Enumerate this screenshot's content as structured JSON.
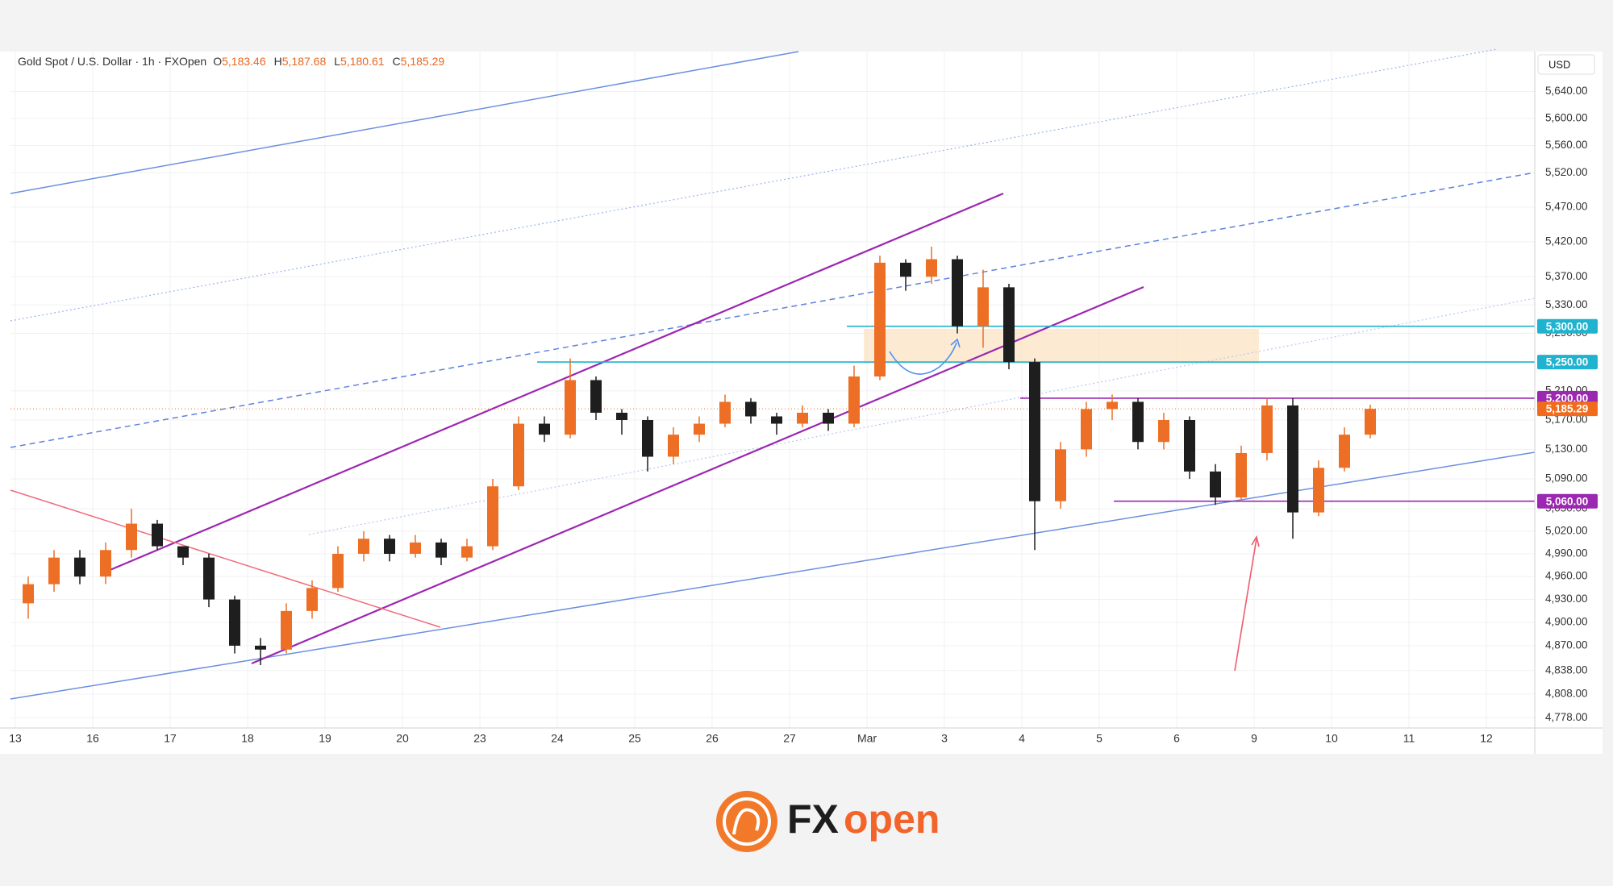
{
  "chart_data": {
    "type": "candlestick",
    "title": "Gold Spot / U.S. Dollar · 1h · FXOpen",
    "ohlc_header": [
      {
        "letter": "O",
        "value": "5,183.46"
      },
      {
        "letter": "H",
        "value": "5,187.68"
      },
      {
        "letter": "L",
        "value": "5,180.61"
      },
      {
        "letter": "C",
        "value": "5,185.29"
      }
    ],
    "currency": "USD",
    "categories": [
      "13",
      "16",
      "17",
      "18",
      "19",
      "20",
      "23",
      "24",
      "25",
      "26",
      "27",
      "Mar",
      "3",
      "4",
      "5",
      "6",
      "9",
      "10",
      "11",
      "12"
    ],
    "series": [
      {
        "up_color": "#ec6f25",
        "down_color": "#1e1e1e",
        "open": [
          4925,
          4950,
          4985,
          4960,
          4995,
          5030,
          5000,
          4985,
          4930,
          4870,
          4865,
          4915,
          4945,
          4990,
          5010,
          4990,
          5005,
          4985,
          5000,
          5080,
          5165,
          5150,
          5225,
          5180,
          5170,
          5120,
          5150,
          5165,
          5195,
          5175,
          5165,
          5180,
          5165,
          5230,
          5390,
          5370,
          5395,
          5300,
          5355,
          5250,
          5060,
          5130,
          5185,
          5195,
          5140,
          5170,
          5100,
          5065,
          5125,
          5190,
          5045,
          5105,
          5150
        ],
        "high": [
          4960,
          4995,
          4995,
          5005,
          5050,
          5035,
          5000,
          4990,
          4935,
          4880,
          4925,
          4955,
          5000,
          5020,
          5015,
          5015,
          5010,
          5010,
          5090,
          5175,
          5175,
          5255,
          5230,
          5185,
          5175,
          5160,
          5175,
          5205,
          5200,
          5180,
          5190,
          5185,
          5245,
          5400,
          5395,
          5413,
          5400,
          5380,
          5360,
          5255,
          5140,
          5195,
          5205,
          5200,
          5180,
          5175,
          5110,
          5135,
          5200,
          5200,
          5115,
          5160,
          5191
        ],
        "low": [
          4905,
          4940,
          4950,
          4950,
          4985,
          4995,
          4975,
          4920,
          4860,
          4845,
          4860,
          4905,
          4940,
          4980,
          4980,
          4985,
          4975,
          4980,
          4995,
          5075,
          5140,
          5145,
          5170,
          5150,
          5100,
          5110,
          5140,
          5160,
          5165,
          5150,
          5160,
          5155,
          5160,
          5225,
          5350,
          5360,
          5290,
          5270,
          5240,
          4995,
          5050,
          5120,
          5170,
          5130,
          5130,
          5090,
          5055,
          5060,
          5115,
          5010,
          5040,
          5100,
          5145
        ],
        "close": [
          4950,
          4985,
          4960,
          4995,
          5030,
          5000,
          4985,
          4930,
          4870,
          4865,
          4915,
          4945,
          4990,
          5010,
          4990,
          5005,
          4985,
          5000,
          5080,
          5165,
          5150,
          5225,
          5180,
          5170,
          5120,
          5150,
          5165,
          5195,
          5175,
          5165,
          5180,
          5165,
          5230,
          5390,
          5370,
          5395,
          5300,
          5355,
          5250,
          5060,
          5130,
          5185,
          5195,
          5140,
          5170,
          5100,
          5065,
          5125,
          5190,
          5045,
          5105,
          5150,
          5185.29
        ]
      }
    ],
    "log_scale": true,
    "grid": true,
    "ylim": [
      4765,
      5700
    ],
    "yticks": [
      {
        "value": 5640,
        "label": "5,640.00"
      },
      {
        "value": 5600,
        "label": "5,600.00"
      },
      {
        "value": 5560,
        "label": "5,560.00"
      },
      {
        "value": 5520,
        "label": "5,520.00"
      },
      {
        "value": 5470,
        "label": "5,470.00"
      },
      {
        "value": 5420,
        "label": "5,420.00"
      },
      {
        "value": 5370,
        "label": "5,370.00"
      },
      {
        "value": 5330,
        "label": "5,330.00"
      },
      {
        "value": 5290,
        "label": "5,290.00"
      },
      {
        "value": 5210,
        "label": "5,210.00"
      },
      {
        "value": 5170,
        "label": "5,170.00"
      },
      {
        "value": 5130,
        "label": "5,130.00"
      },
      {
        "value": 5090,
        "label": "5,090.00"
      },
      {
        "value": 5050,
        "label": "5,050.00"
      },
      {
        "value": 5020,
        "label": "5,020.00"
      },
      {
        "value": 4990,
        "label": "4,990.00"
      },
      {
        "value": 4960,
        "label": "4,960.00"
      },
      {
        "value": 4930,
        "label": "4,930.00"
      },
      {
        "value": 4900,
        "label": "4,900.00"
      },
      {
        "value": 4870,
        "label": "4,870.00"
      },
      {
        "value": 4838,
        "label": "4,838.00"
      },
      {
        "value": 4808,
        "label": "4,808.00"
      },
      {
        "value": 4778,
        "label": "4,778.00"
      }
    ],
    "price_levels": [
      {
        "value": 5300,
        "label": "5,300.00",
        "color": "#1fb3cf"
      },
      {
        "value": 5250,
        "label": "5,250.00",
        "color": "#1fb3cf"
      },
      {
        "value": 5200,
        "label": "5,200.00",
        "color": "#9c27b0"
      },
      {
        "value": 5060,
        "label": "5,060.00",
        "color": "#9c27b0"
      }
    ],
    "last_price": {
      "value": 5185.29,
      "label": "5,185.29",
      "color": "#f26b1d"
    }
  },
  "branding": {
    "prefix": "FX",
    "suffix": "open"
  }
}
